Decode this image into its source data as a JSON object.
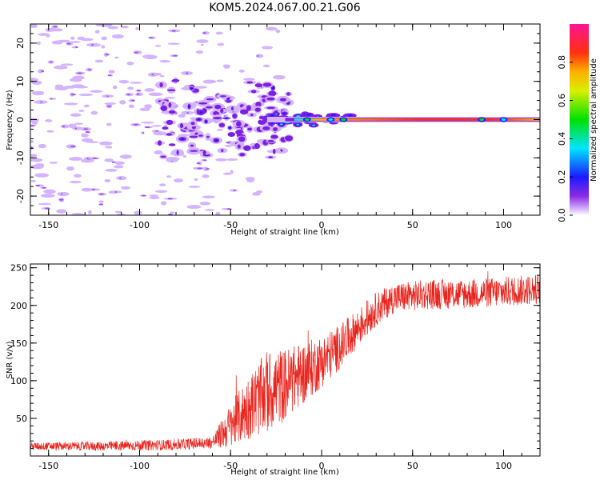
{
  "title": "KOM5.2024.067.00.21.G06",
  "chart_data": [
    {
      "type": "heatmap",
      "xlabel": "Height of straight line (km)",
      "ylabel": "Frequency (Hz)",
      "xlim": [
        -160,
        120
      ],
      "ylim": [
        -25,
        25
      ],
      "xticks": [
        -150,
        -100,
        -50,
        0,
        50,
        100
      ],
      "yticks": [
        -20,
        -10,
        0,
        10,
        20
      ],
      "colorbar": {
        "label": "Normalized spectral amplitude",
        "range": [
          0,
          1
        ],
        "ticks": [
          0.0,
          0.2,
          0.4,
          0.6,
          0.8
        ],
        "colormap": "rainbow (white-lavender-purple-blue-cyan-green-yellow-orange-red-pink)"
      },
      "description_values": {
        "main_line_frequency_hz": 0,
        "main_line_x_range_km": [
          -30,
          120
        ],
        "main_line_peak_amplitude": 0.9,
        "scatter_region_x_range_km": [
          -160,
          -20
        ]
      }
    },
    {
      "type": "line",
      "xlabel": "Height of straight line (km)",
      "ylabel": "SNR (v/v)",
      "xlim": [
        -160,
        120
      ],
      "ylim": [
        0,
        255
      ],
      "xticks": [
        -150,
        -100,
        -50,
        0,
        50,
        100
      ],
      "yticks": [
        50,
        100,
        150,
        200,
        250
      ],
      "color": "#e8241d",
      "trend": {
        "x": [
          -160,
          -120,
          -80,
          -60,
          -50,
          -40,
          -30,
          -20,
          -10,
          0,
          10,
          20,
          30,
          40,
          60,
          80,
          100,
          120
        ],
        "y": [
          13,
          13,
          15,
          18,
          40,
          65,
          85,
          95,
          110,
          125,
          145,
          170,
          195,
          210,
          215,
          215,
          218,
          222
        ]
      },
      "noise_amplitude": {
        "x": [
          -160,
          -60,
          -50,
          -30,
          -15,
          0,
          20,
          40,
          120
        ],
        "y": [
          5,
          8,
          30,
          55,
          45,
          35,
          25,
          20,
          20
        ]
      }
    }
  ]
}
